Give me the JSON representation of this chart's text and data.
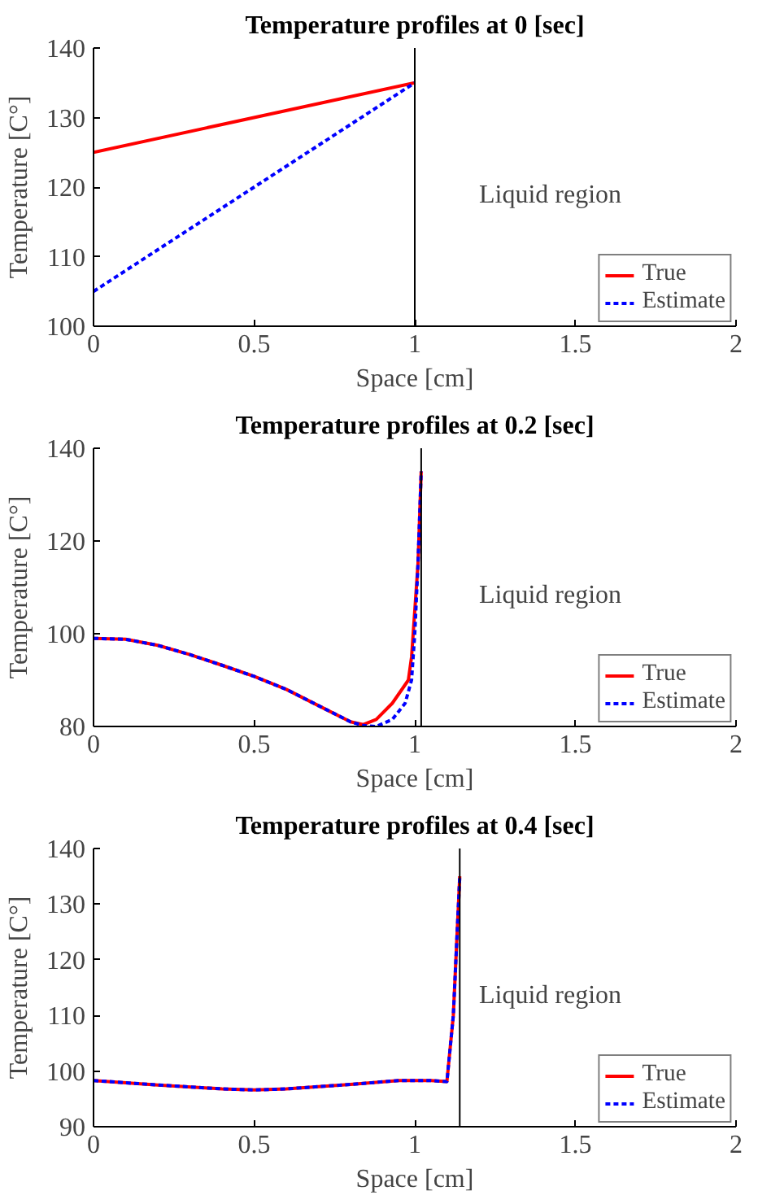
{
  "chart_data": [
    {
      "type": "line",
      "title": "Temperature profiles at 0 [sec]",
      "xlabel": "Space [cm]",
      "ylabel": "Temperature [C°]",
      "xlim": [
        0,
        2
      ],
      "xticks": [
        0,
        0.5,
        1,
        1.5,
        2
      ],
      "ylim": [
        100,
        140
      ],
      "yticks": [
        100,
        110,
        120,
        130,
        140
      ],
      "legend": "bottom right",
      "grid": false,
      "series": [
        {
          "name": "True",
          "color": "#ff0000",
          "line_style": "solid",
          "x": [
            0,
            1
          ],
          "values": [
            125,
            135
          ]
        },
        {
          "name": "Estimate",
          "color": "#0000ff",
          "line_style": "dashed",
          "x": [
            0,
            1
          ],
          "values": [
            105,
            135
          ]
        }
      ],
      "ref_lines": [
        {
          "axis": "x",
          "value": 1,
          "color": "#000000"
        }
      ],
      "annotations": [
        "Liquid region"
      ]
    },
    {
      "type": "line",
      "title": "Temperature profiles at 0.2 [sec]",
      "xlabel": "Space [cm]",
      "ylabel": "Temperature [C°]",
      "xlim": [
        0,
        2
      ],
      "xticks": [
        0,
        0.5,
        1,
        1.5,
        2
      ],
      "ylim": [
        80,
        140
      ],
      "yticks": [
        80,
        100,
        120,
        140
      ],
      "legend": "bottom right",
      "grid": false,
      "series": [
        {
          "name": "True",
          "color": "#ff0000",
          "line_style": "solid",
          "x": [
            0,
            0.1,
            0.2,
            0.3,
            0.4,
            0.5,
            0.6,
            0.7,
            0.8,
            0.84,
            0.88,
            0.93,
            0.98,
            0.99,
            1.0,
            1.01,
            1.02
          ],
          "values": [
            99,
            98.8,
            97.5,
            95.5,
            93.2,
            90.8,
            88,
            84.5,
            81,
            80.4,
            81.5,
            85,
            90,
            95,
            105,
            115,
            135
          ]
        },
        {
          "name": "Estimate",
          "color": "#0000ff",
          "line_style": "dashed",
          "x": [
            0,
            0.1,
            0.2,
            0.3,
            0.4,
            0.5,
            0.6,
            0.7,
            0.8,
            0.84,
            0.88,
            0.93,
            0.97,
            0.99,
            1.0,
            1.01,
            1.02
          ],
          "values": [
            99,
            98.8,
            97.5,
            95.5,
            93.2,
            90.8,
            88,
            84.5,
            81,
            80.2,
            80,
            81.5,
            85,
            90,
            100,
            115,
            135
          ]
        }
      ],
      "ref_lines": [
        {
          "axis": "x",
          "value": 1.02,
          "color": "#000000"
        }
      ],
      "annotations": [
        "Liquid region"
      ]
    },
    {
      "type": "line",
      "title": "Temperature profiles at 0.4 [sec]",
      "xlabel": "Space [cm]",
      "ylabel": "Temperature [C°]",
      "xlim": [
        0,
        2
      ],
      "xticks": [
        0,
        0.5,
        1,
        1.5,
        2
      ],
      "ylim": [
        90,
        140
      ],
      "yticks": [
        90,
        100,
        110,
        120,
        130,
        140
      ],
      "legend": "bottom right",
      "grid": false,
      "series": [
        {
          "name": "True",
          "color": "#ff0000",
          "line_style": "solid",
          "x": [
            0,
            0.2,
            0.4,
            0.5,
            0.6,
            0.8,
            0.95,
            1.05,
            1.1,
            1.12,
            1.14
          ],
          "values": [
            98.3,
            97.5,
            96.8,
            96.6,
            96.8,
            97.6,
            98.3,
            98.3,
            98.1,
            110,
            135
          ]
        },
        {
          "name": "Estimate",
          "color": "#0000ff",
          "line_style": "dashed",
          "x": [
            0,
            0.2,
            0.4,
            0.5,
            0.6,
            0.8,
            0.95,
            1.05,
            1.1,
            1.12,
            1.14
          ],
          "values": [
            98.3,
            97.5,
            96.8,
            96.6,
            96.8,
            97.6,
            98.3,
            98.3,
            98.1,
            110,
            135
          ]
        }
      ],
      "ref_lines": [
        {
          "axis": "x",
          "value": 1.14,
          "color": "#000000"
        }
      ],
      "annotations": [
        "Liquid region"
      ]
    }
  ]
}
